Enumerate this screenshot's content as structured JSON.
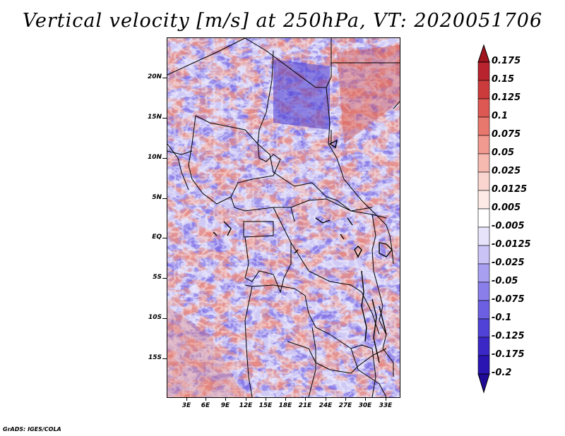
{
  "title": "Vertical velocity [m/s] at 250hPa, VT: 2020051706",
  "footer": "GrADS: IGES/COLA",
  "map": {
    "region": "Central Africa",
    "lon_range_deg": [
      0,
      35
    ],
    "lat_range_deg": [
      -20,
      25
    ],
    "lat_labels": [
      "20N",
      "15N",
      "10N",
      "5N",
      "EQ",
      "5S",
      "10S",
      "15S"
    ],
    "lon_labels": [
      "3E",
      "6E",
      "9E",
      "12E",
      "15E",
      "18E",
      "21E",
      "24E",
      "27E",
      "30E",
      "33E"
    ]
  },
  "colorbar": {
    "labels": [
      "0.175",
      "0.15",
      "0.125",
      "0.1",
      "0.075",
      "0.05",
      "0.025",
      "0.0125",
      "0.005",
      "-0.005",
      "-0.0125",
      "-0.025",
      "-0.05",
      "-0.075",
      "-0.1",
      "-0.125",
      "-0.175",
      "-0.2"
    ],
    "colors_top_to_bottom": [
      "#a0141e",
      "#b8232d",
      "#cc3b3c",
      "#dd5753",
      "#e8776e",
      "#f19a90",
      "#f6bab1",
      "#fad5cf",
      "#fdeae7",
      "#ffffff",
      "#e6e3fb",
      "#c9c3f6",
      "#a89ff0",
      "#8a7eea",
      "#6c5fe2",
      "#5042d6",
      "#3a27c6",
      "#2a14b2",
      "#1e0a96"
    ]
  }
}
